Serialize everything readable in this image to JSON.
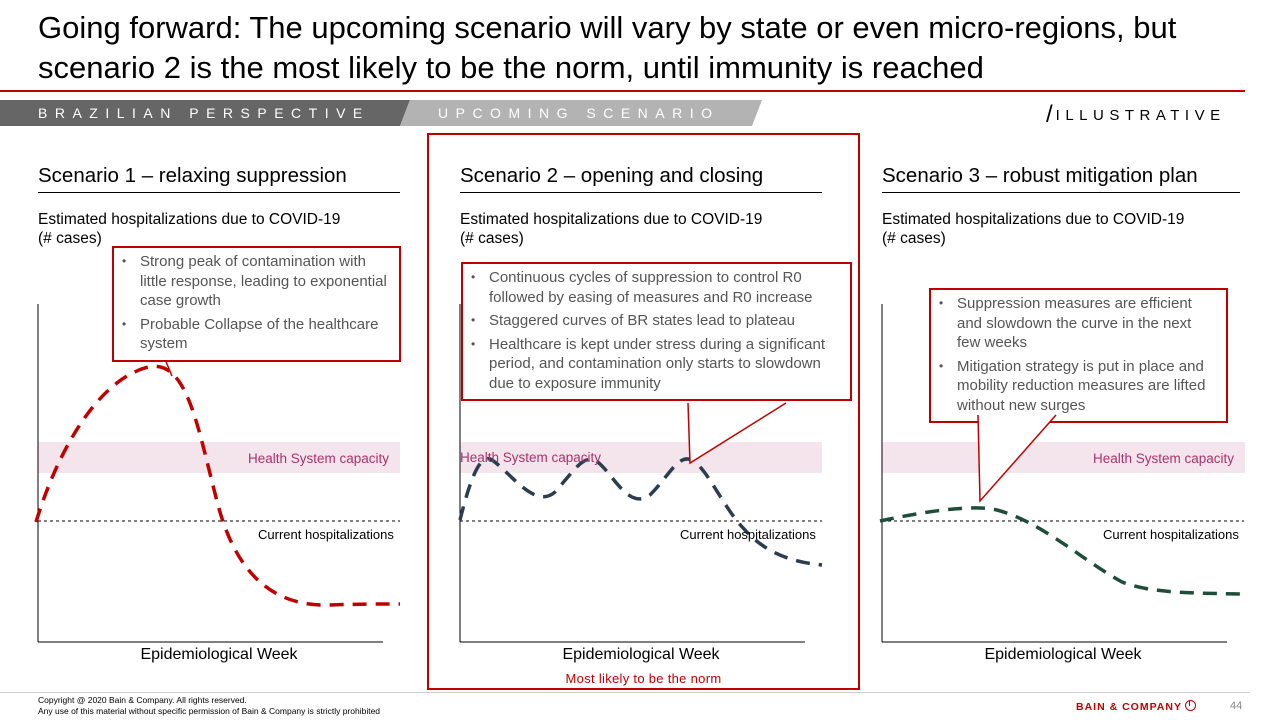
{
  "title": "Going forward: The upcoming scenario will vary by state or even micro-regions, but scenario 2 is the most likely to be the norm, until immunity is reached",
  "tabs": [
    "BRAZILIAN PERSPECTIVE",
    "UPCOMING SCENARIO"
  ],
  "illustrative": "ILLUSTRATIVE",
  "illustrative_slash": "/",
  "colors": {
    "accent": "#c00000",
    "tab_active": "#666666",
    "tab_inactive": "#b3b3b3",
    "capacity_band": "#f4e4ec",
    "capacity_text": "#a8336c",
    "curve_red": "#c00000",
    "curve_navy": "#2b3d4f",
    "curve_green": "#1e4d3a"
  },
  "panels": [
    {
      "heading": "Scenario 1 – relaxing suppression",
      "subtitle_line1": "Estimated hospitalizations due to COVID-19",
      "subtitle_line2": "(# cases)",
      "bullets": [
        "Strong peak of contamination with little response, leading to exponential case growth",
        "Probable Collapse of the healthcare system"
      ],
      "capacity_label": "Health System capacity",
      "current_label": "Current hospitalizations",
      "xlabel": "Epidemiological Week",
      "curve_color": "#c00000"
    },
    {
      "heading": "Scenario 2 – opening and closing",
      "subtitle_line1": "Estimated hospitalizations due to COVID-19",
      "subtitle_line2": "(# cases)",
      "bullets": [
        "Continuous cycles of suppression to control R0 followed by easing of measures and R0 increase",
        "Staggered curves of BR states lead to plateau",
        "Healthcare is kept under stress during a significant period, and contamination only starts to slowdown due to exposure immunity"
      ],
      "capacity_label": "Health System capacity",
      "current_label": "Current hospitalizations",
      "xlabel": "Epidemiological Week",
      "note": "Most likely to be the norm",
      "curve_color": "#2b3d4f"
    },
    {
      "heading": "Scenario 3 – robust mitigation plan",
      "subtitle_line1": "Estimated hospitalizations due to COVID-19",
      "subtitle_line2": "(# cases)",
      "bullets": [
        "Suppression measures are efficient and slowdown the curve in the next few weeks",
        "Mitigation strategy is put in place and mobility reduction measures are lifted without new surges"
      ],
      "capacity_label": "Health System capacity",
      "current_label": "Current hospitalizations",
      "xlabel": "Epidemiological Week",
      "curve_color": "#1e4d3a"
    }
  ],
  "footer": {
    "copyright_line1": "Copyright @ 2020 Bain & Company. All rights reserved.",
    "copyright_line2": "Any use of this material without specific permission of Bain & Company is strictly prohibited",
    "brand": "BAIN & COMPANY",
    "page_number": "44"
  }
}
